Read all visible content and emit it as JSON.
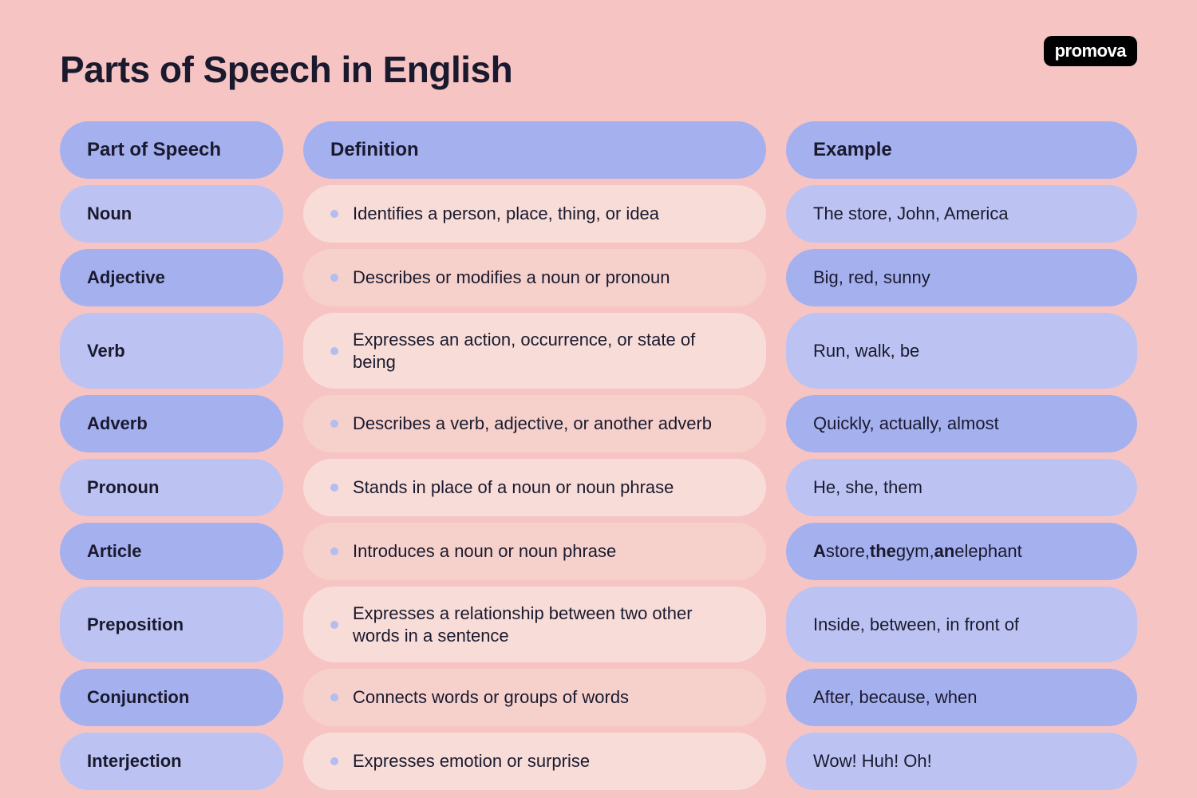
{
  "brand": "promova",
  "title": "Parts of Speech in English",
  "headers": {
    "col1": "Part of Speech",
    "col2": "Definition",
    "col3": "Example"
  },
  "rows": [
    {
      "part": "Noun",
      "definition": "Identifies a person, place, thing, or idea",
      "example": "The store, John, America"
    },
    {
      "part": "Adjective",
      "definition": "Describes or modifies a noun or pronoun",
      "example": "Big, red, sunny"
    },
    {
      "part": "Verb",
      "definition": "Expresses an action, occurrence, or state of being",
      "example": "Run, walk, be"
    },
    {
      "part": "Adverb",
      "definition": "Describes a verb, adjective, or another adverb",
      "example": "Quickly, actually, almost"
    },
    {
      "part": "Pronoun",
      "definition": "Stands in place of a noun or noun phrase",
      "example": "He, she, them"
    },
    {
      "part": "Article",
      "definition": "Introduces a noun or noun phrase",
      "example_html": "<b>A</b> store, <b>the</b> gym, <b>an</b> elephant"
    },
    {
      "part": "Preposition",
      "definition": "Expresses a relationship between two other words in a sentence",
      "example": "Inside, between, in front of"
    },
    {
      "part": "Conjunction",
      "definition": "Connects words or groups of words",
      "example": "After, because, when"
    },
    {
      "part": "Interjection",
      "definition": "Expresses emotion or surprise",
      "example": "Wow! Huh! Oh!"
    }
  ],
  "colors": {
    "background": "#f7c4c4",
    "purple_light": "#bcc3f2",
    "purple_dark": "#a5b0ef",
    "pink_light": "#f8dcd8",
    "pink_dark": "#f6d1cc",
    "bullet": "#b3bdf0",
    "text": "#1a1a2e"
  }
}
